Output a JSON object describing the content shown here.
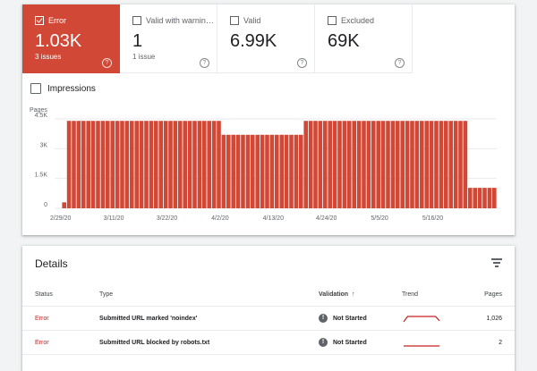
{
  "summary": {
    "tiles": [
      {
        "label": "Error",
        "value": "1.03K",
        "sub": "3 issues",
        "active": true
      },
      {
        "label": "Valid with warnin…",
        "value": "1",
        "sub": "1 issue",
        "active": false
      },
      {
        "label": "Valid",
        "value": "6.99K",
        "sub": "",
        "active": false
      },
      {
        "label": "Excluded",
        "value": "69K",
        "sub": "",
        "active": false
      }
    ],
    "help_glyph": "?",
    "impressions_label": "Impressions"
  },
  "chart_data": {
    "type": "bar",
    "ylabel": "Pages",
    "ylim": [
      0,
      4500
    ],
    "yticks": [
      0,
      1500,
      3000,
      4500
    ],
    "ytick_labels": [
      "0",
      "1.5K",
      "3K",
      "4.5K"
    ],
    "xtick_labels": [
      "2/29/20",
      "3/11/20",
      "3/22/20",
      "4/2/20",
      "4/13/20",
      "4/24/20",
      "5/5/20",
      "5/16/20"
    ],
    "start_date": "2/29/20",
    "color": "#d14836",
    "values": [
      300,
      4400,
      4400,
      4400,
      4400,
      4400,
      4400,
      4400,
      4400,
      4400,
      4400,
      4400,
      4400,
      4400,
      4400,
      4400,
      4400,
      4400,
      4400,
      4400,
      4400,
      4400,
      4400,
      4400,
      4400,
      4400,
      4400,
      4400,
      4400,
      4400,
      4400,
      4400,
      4400,
      3700,
      3700,
      3700,
      3700,
      3700,
      3700,
      3700,
      3700,
      3700,
      3700,
      3700,
      3700,
      3700,
      3700,
      3700,
      3700,
      3700,
      4400,
      4400,
      4400,
      4400,
      4400,
      4400,
      4400,
      4400,
      4400,
      4400,
      4400,
      4400,
      4400,
      4400,
      4400,
      4400,
      4400,
      4400,
      4400,
      4400,
      4400,
      4400,
      4400,
      4400,
      4400,
      4400,
      4400,
      4400,
      4400,
      4400,
      4400,
      4400,
      4400,
      4400,
      1030,
      1030,
      1030,
      1030,
      1030,
      1030
    ]
  },
  "details": {
    "title": "Details",
    "columns": {
      "status": "Status",
      "type": "Type",
      "validation": "Validation",
      "sort_arrow": "↑",
      "trend": "Trend",
      "pages": "Pages"
    },
    "rows": [
      {
        "status": "Error",
        "type": "Submitted URL marked 'noindex'",
        "validation_icon": "!",
        "validation": "Not Started",
        "pages": "1,026",
        "trend": [
          0,
          1,
          1,
          1,
          1,
          1,
          1,
          1,
          1,
          0.2
        ]
      },
      {
        "status": "Error",
        "type": "Submitted URL blocked by robots.txt",
        "validation_icon": "!",
        "validation": "Not Started",
        "pages": "2",
        "trend": [
          0,
          0,
          0,
          0,
          0,
          0,
          0,
          0,
          0,
          0
        ]
      }
    ]
  },
  "colors": {
    "error": "#d14836",
    "status_text": "#c5221f",
    "trend": "#c5221f"
  }
}
